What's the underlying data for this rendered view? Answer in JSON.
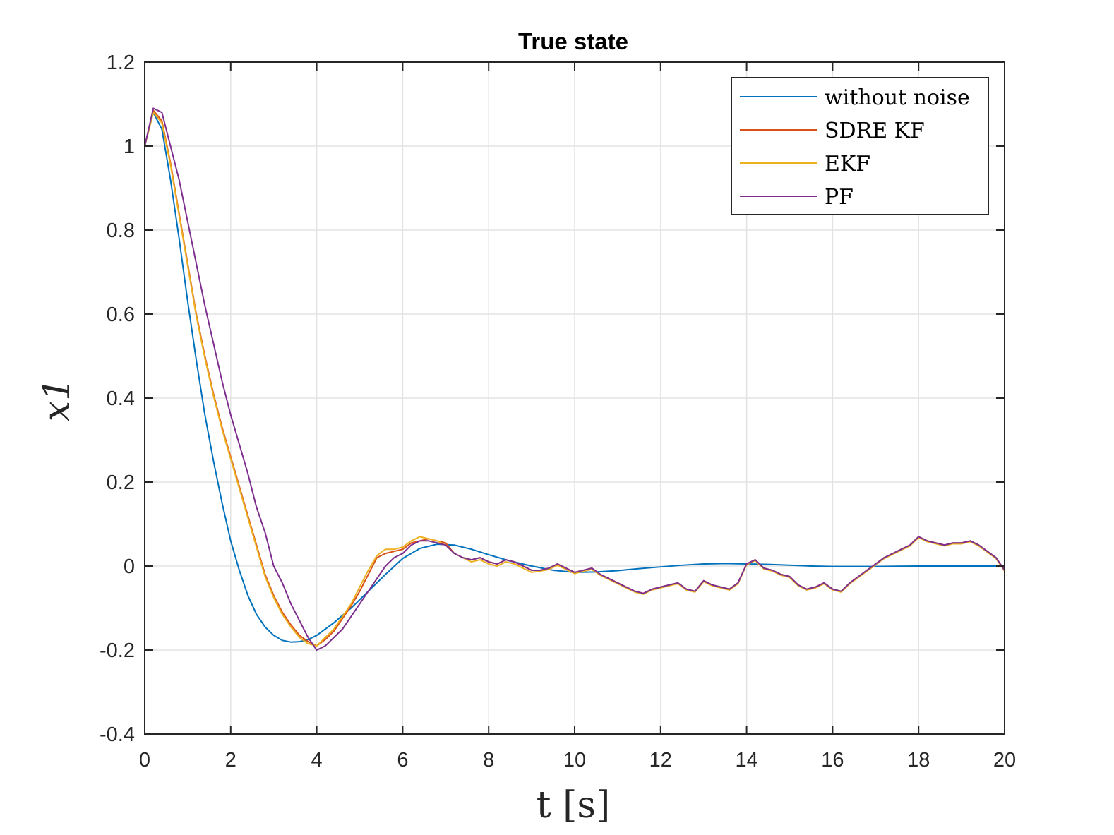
{
  "chart_data": {
    "type": "line",
    "title": "True state",
    "xlabel": "t [s]",
    "ylabel": "x1",
    "xlim": [
      0,
      20
    ],
    "ylim": [
      -0.4,
      1.2
    ],
    "xticks": [
      0,
      2,
      4,
      6,
      8,
      10,
      12,
      14,
      16,
      18,
      20
    ],
    "yticks": [
      -0.4,
      -0.2,
      0,
      0.2,
      0.4,
      0.6,
      0.8,
      1,
      1.2
    ],
    "xtick_labels": [
      "0",
      "2",
      "4",
      "6",
      "8",
      "10",
      "12",
      "14",
      "16",
      "18",
      "20"
    ],
    "ytick_labels": [
      "-0.4",
      "-0.2",
      "0",
      "0.2",
      "0.4",
      "0.6",
      "0.8",
      "1",
      "1.2"
    ],
    "grid": true,
    "legend_position": "top-right",
    "series": [
      {
        "name": "without noise",
        "color": "#0072BD",
        "x": [
          0,
          0.2,
          0.4,
          0.6,
          0.8,
          1.0,
          1.2,
          1.4,
          1.6,
          1.8,
          2.0,
          2.2,
          2.4,
          2.6,
          2.8,
          3.0,
          3.2,
          3.4,
          3.6,
          3.8,
          4.0,
          4.4,
          4.8,
          5.2,
          5.6,
          6.0,
          6.4,
          6.8,
          7.2,
          7.6,
          8.0,
          8.5,
          9.0,
          9.5,
          10.0,
          10.5,
          11.0,
          11.5,
          12.0,
          12.5,
          13.0,
          13.5,
          14.0,
          14.5,
          15.0,
          15.5,
          16.0,
          17.0,
          18.0,
          19.0,
          20.0
        ],
        "y": [
          1.0,
          1.08,
          1.04,
          0.92,
          0.78,
          0.63,
          0.49,
          0.36,
          0.25,
          0.15,
          0.06,
          -0.01,
          -0.07,
          -0.115,
          -0.145,
          -0.165,
          -0.177,
          -0.181,
          -0.18,
          -0.175,
          -0.165,
          -0.135,
          -0.1,
          -0.06,
          -0.02,
          0.018,
          0.042,
          0.052,
          0.05,
          0.04,
          0.027,
          0.012,
          0.0,
          -0.01,
          -0.015,
          -0.014,
          -0.011,
          -0.006,
          -0.002,
          0.002,
          0.005,
          0.006,
          0.005,
          0.004,
          0.002,
          0.0,
          -0.001,
          -0.001,
          0.0,
          0.0,
          0.0
        ]
      },
      {
        "name": "SDRE KF",
        "color": "#D95319",
        "x": [
          0,
          0.2,
          0.4,
          0.6,
          0.8,
          1.0,
          1.2,
          1.4,
          1.6,
          1.8,
          2.0,
          2.2,
          2.4,
          2.6,
          2.8,
          3.0,
          3.2,
          3.4,
          3.6,
          3.8,
          4.0,
          4.2,
          4.4,
          4.6,
          4.8,
          5.0,
          5.2,
          5.4,
          5.6,
          5.8,
          6.0,
          6.2,
          6.4,
          6.6,
          6.8,
          7.0,
          7.2,
          7.4,
          7.6,
          7.8,
          8.0,
          8.2,
          8.4,
          8.6,
          8.8,
          9.0,
          9.2,
          9.4,
          9.6,
          9.8,
          10.0,
          10.2,
          10.4,
          10.6,
          10.8,
          11.0,
          11.2,
          11.4,
          11.6,
          11.8,
          12.0,
          12.2,
          12.4,
          12.6,
          12.8,
          13.0,
          13.2,
          13.4,
          13.6,
          13.8,
          14.0,
          14.2,
          14.4,
          14.6,
          14.8,
          15.0,
          15.2,
          15.4,
          15.6,
          15.8,
          16.0,
          16.2,
          16.4,
          16.6,
          16.8,
          17.0,
          17.2,
          17.4,
          17.6,
          17.8,
          18.0,
          18.2,
          18.4,
          18.6,
          18.8,
          19.0,
          19.2,
          19.4,
          19.6,
          19.8,
          20.0
        ],
        "y": [
          1.0,
          1.085,
          1.06,
          0.96,
          0.84,
          0.72,
          0.6,
          0.5,
          0.41,
          0.33,
          0.26,
          0.19,
          0.12,
          0.05,
          -0.02,
          -0.07,
          -0.11,
          -0.14,
          -0.165,
          -0.18,
          -0.19,
          -0.175,
          -0.155,
          -0.125,
          -0.095,
          -0.06,
          -0.02,
          0.02,
          0.03,
          0.035,
          0.04,
          0.055,
          0.06,
          0.065,
          0.06,
          0.055,
          0.03,
          0.02,
          0.015,
          0.02,
          0.01,
          0.005,
          0.015,
          0.01,
          0.0,
          -0.01,
          -0.01,
          -0.005,
          0.005,
          -0.005,
          -0.015,
          -0.01,
          -0.005,
          -0.02,
          -0.03,
          -0.04,
          -0.05,
          -0.06,
          -0.065,
          -0.055,
          -0.05,
          -0.045,
          -0.04,
          -0.055,
          -0.06,
          -0.035,
          -0.045,
          -0.05,
          -0.055,
          -0.04,
          0.005,
          0.015,
          -0.005,
          -0.01,
          -0.02,
          -0.025,
          -0.045,
          -0.055,
          -0.05,
          -0.04,
          -0.055,
          -0.06,
          -0.04,
          -0.025,
          -0.01,
          0.005,
          0.02,
          0.03,
          0.04,
          0.05,
          0.07,
          0.06,
          0.055,
          0.05,
          0.055,
          0.055,
          0.06,
          0.05,
          0.035,
          0.02,
          -0.01
        ]
      },
      {
        "name": "EKF",
        "color": "#EDB120",
        "x": [
          0,
          0.2,
          0.4,
          0.6,
          0.8,
          1.0,
          1.2,
          1.4,
          1.6,
          1.8,
          2.0,
          2.2,
          2.4,
          2.6,
          2.8,
          3.0,
          3.2,
          3.4,
          3.6,
          3.8,
          4.0,
          4.2,
          4.4,
          4.6,
          4.8,
          5.0,
          5.2,
          5.4,
          5.6,
          5.8,
          6.0,
          6.2,
          6.4,
          6.6,
          6.8,
          7.0,
          7.2,
          7.4,
          7.6,
          7.8,
          8.0,
          8.2,
          8.4,
          8.6,
          8.8,
          9.0,
          9.2,
          9.4,
          9.6,
          9.8,
          10.0,
          10.2,
          10.4,
          10.6,
          10.8,
          11.0,
          11.2,
          11.4,
          11.6,
          11.8,
          12.0,
          12.2,
          12.4,
          12.6,
          12.8,
          13.0,
          13.2,
          13.4,
          13.6,
          13.8,
          14.0,
          14.2,
          14.4,
          14.6,
          14.8,
          15.0,
          15.2,
          15.4,
          15.6,
          15.8,
          16.0,
          16.2,
          16.4,
          16.6,
          16.8,
          17.0,
          17.2,
          17.4,
          17.6,
          17.8,
          18.0,
          18.2,
          18.4,
          18.6,
          18.8,
          19.0,
          19.2,
          19.4,
          19.6,
          19.8,
          20.0
        ],
        "y": [
          1.0,
          1.08,
          1.055,
          0.955,
          0.835,
          0.715,
          0.595,
          0.495,
          0.405,
          0.325,
          0.255,
          0.185,
          0.115,
          0.045,
          -0.025,
          -0.075,
          -0.115,
          -0.145,
          -0.17,
          -0.185,
          -0.19,
          -0.17,
          -0.15,
          -0.12,
          -0.09,
          -0.05,
          -0.01,
          0.025,
          0.04,
          0.04,
          0.045,
          0.06,
          0.07,
          0.065,
          0.06,
          0.05,
          0.03,
          0.02,
          0.01,
          0.015,
          0.005,
          0.0,
          0.01,
          0.005,
          -0.005,
          -0.015,
          -0.012,
          -0.008,
          0.002,
          -0.008,
          -0.018,
          -0.012,
          -0.008,
          -0.022,
          -0.032,
          -0.042,
          -0.052,
          -0.062,
          -0.067,
          -0.057,
          -0.052,
          -0.047,
          -0.042,
          -0.057,
          -0.062,
          -0.037,
          -0.047,
          -0.052,
          -0.057,
          -0.042,
          0.003,
          0.013,
          -0.007,
          -0.012,
          -0.022,
          -0.027,
          -0.047,
          -0.057,
          -0.052,
          -0.042,
          -0.057,
          -0.062,
          -0.042,
          -0.027,
          -0.012,
          0.003,
          0.018,
          0.028,
          0.038,
          0.048,
          0.068,
          0.058,
          0.053,
          0.048,
          0.053,
          0.053,
          0.058,
          0.048,
          0.033,
          0.018,
          -0.012
        ]
      },
      {
        "name": "PF",
        "color": "#7E2F8E",
        "x": [
          0,
          0.2,
          0.4,
          0.6,
          0.8,
          1.0,
          1.2,
          1.4,
          1.6,
          1.8,
          2.0,
          2.2,
          2.4,
          2.6,
          2.8,
          3.0,
          3.2,
          3.4,
          3.6,
          3.8,
          4.0,
          4.2,
          4.4,
          4.6,
          4.8,
          5.0,
          5.2,
          5.4,
          5.6,
          5.8,
          6.0,
          6.2,
          6.4,
          6.6,
          6.8,
          7.0,
          7.2,
          7.4,
          7.6,
          7.8,
          8.0,
          8.2,
          8.4,
          8.6,
          8.8,
          9.0,
          9.2,
          9.4,
          9.6,
          9.8,
          10.0,
          10.2,
          10.4,
          10.6,
          10.8,
          11.0,
          11.2,
          11.4,
          11.6,
          11.8,
          12.0,
          12.2,
          12.4,
          12.6,
          12.8,
          13.0,
          13.2,
          13.4,
          13.6,
          13.8,
          14.0,
          14.2,
          14.4,
          14.6,
          14.8,
          15.0,
          15.2,
          15.4,
          15.6,
          15.8,
          16.0,
          16.2,
          16.4,
          16.6,
          16.8,
          17.0,
          17.2,
          17.4,
          17.6,
          17.8,
          18.0,
          18.2,
          18.4,
          18.6,
          18.8,
          19.0,
          19.2,
          19.4,
          19.6,
          19.8,
          20.0
        ],
        "y": [
          1.0,
          1.09,
          1.08,
          1.0,
          0.92,
          0.82,
          0.72,
          0.62,
          0.53,
          0.44,
          0.36,
          0.29,
          0.22,
          0.14,
          0.08,
          0.0,
          -0.04,
          -0.09,
          -0.13,
          -0.17,
          -0.2,
          -0.19,
          -0.17,
          -0.15,
          -0.12,
          -0.09,
          -0.06,
          -0.03,
          0.0,
          0.02,
          0.03,
          0.05,
          0.06,
          0.06,
          0.055,
          0.05,
          0.03,
          0.02,
          0.015,
          0.02,
          0.01,
          0.005,
          0.015,
          0.01,
          0.0,
          -0.01,
          -0.01,
          -0.005,
          0.005,
          -0.005,
          -0.015,
          -0.01,
          -0.005,
          -0.02,
          -0.03,
          -0.04,
          -0.05,
          -0.06,
          -0.065,
          -0.055,
          -0.05,
          -0.045,
          -0.04,
          -0.055,
          -0.06,
          -0.035,
          -0.045,
          -0.05,
          -0.055,
          -0.04,
          0.005,
          0.015,
          -0.005,
          -0.01,
          -0.02,
          -0.025,
          -0.045,
          -0.055,
          -0.05,
          -0.04,
          -0.055,
          -0.06,
          -0.04,
          -0.025,
          -0.01,
          0.005,
          0.02,
          0.03,
          0.04,
          0.05,
          0.07,
          0.06,
          0.055,
          0.05,
          0.055,
          0.055,
          0.06,
          0.05,
          0.035,
          0.02,
          -0.01
        ]
      }
    ]
  }
}
